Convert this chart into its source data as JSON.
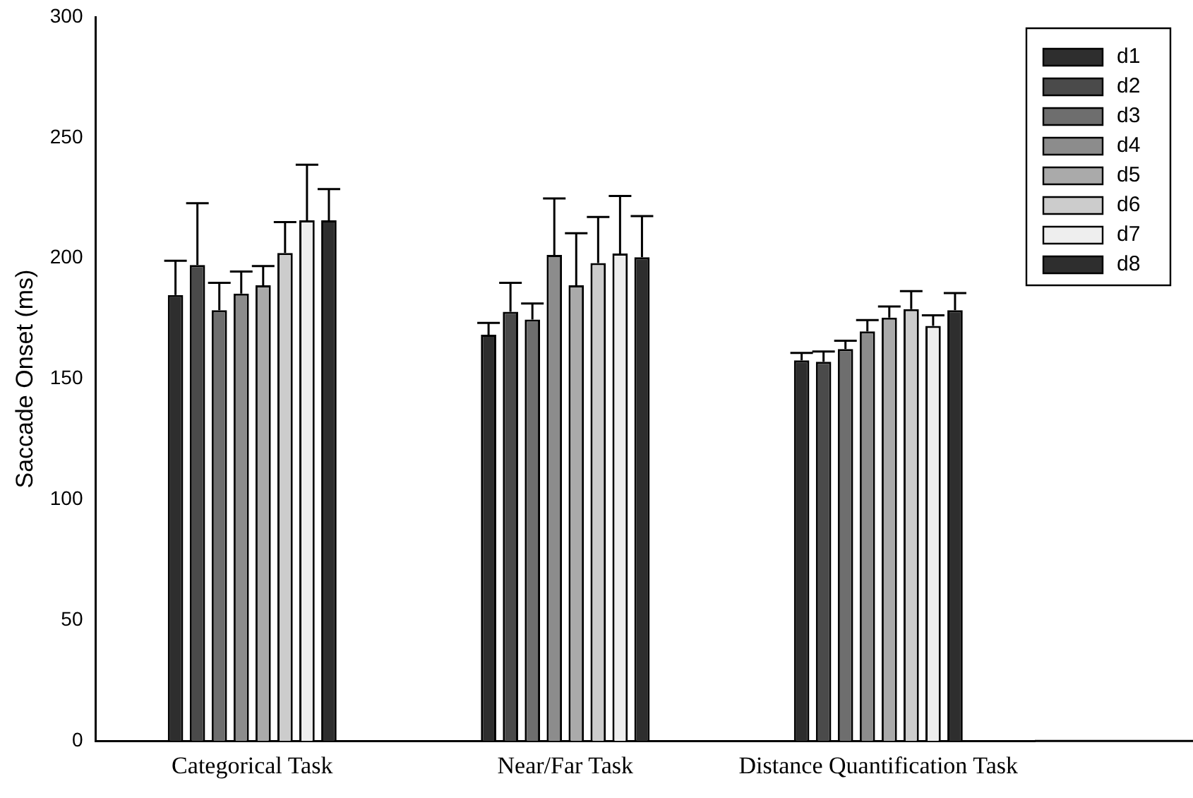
{
  "chart_data": {
    "type": "bar",
    "ylabel": "Saccade Onset (ms)",
    "categories": [
      "Categorical Task",
      "Near/Far Task",
      "Distance Quantification Task"
    ],
    "ylim": [
      0,
      300
    ],
    "yticks": [
      0,
      50,
      100,
      150,
      200,
      250,
      300
    ],
    "grid": false,
    "legend": "top right",
    "series": [
      {
        "name": "d1",
        "color": "#2e2e2e",
        "values": [
          184.8,
          168.3,
          157.7
        ],
        "errors": [
          [
            184.8,
            199
          ],
          [
            168.3,
            173.2
          ],
          [
            157.7,
            160.8
          ]
        ]
      },
      {
        "name": "d2",
        "color": "#4a4a4a",
        "values": [
          197.2,
          177.8,
          157.1
        ],
        "errors": [
          [
            197.2,
            222.8
          ],
          [
            177.8,
            189.8
          ],
          [
            157.1,
            161.4
          ]
        ]
      },
      {
        "name": "d3",
        "color": "#6e6e6e",
        "values": [
          178.5,
          174.6,
          162.4
        ],
        "errors": [
          [
            178.5,
            189.8
          ],
          [
            174.6,
            181.3
          ],
          [
            162.4,
            165.8
          ]
        ]
      },
      {
        "name": "d4",
        "color": "#8c8c8c",
        "values": [
          185.4,
          201.4,
          169.7
        ],
        "errors": [
          [
            185.4,
            194.5
          ],
          [
            201.4,
            224.8
          ],
          [
            169.7,
            174.4
          ]
        ]
      },
      {
        "name": "d5",
        "color": "#aaaaaa",
        "values": [
          188.8,
          188.8,
          175.4
        ],
        "errors": [
          [
            188.8,
            196.8
          ],
          [
            188.8,
            210.4
          ],
          [
            175.4,
            180
          ]
        ]
      },
      {
        "name": "d6",
        "color": "#cccccc",
        "values": [
          202.2,
          198,
          178.9
        ],
        "errors": [
          [
            202.2,
            215
          ],
          [
            198,
            217.1
          ],
          [
            178.9,
            186.4
          ]
        ]
      },
      {
        "name": "d7",
        "color": "#eeeeee",
        "values": [
          215.7,
          202,
          172
        ],
        "errors": [
          [
            215.7,
            238.8
          ],
          [
            202,
            225.8
          ],
          [
            172,
            176.4
          ]
        ]
      },
      {
        "name": "d8",
        "color": "#2e2e2e",
        "values": [
          215.7,
          200.4,
          178.5
        ],
        "errors": [
          [
            215.7,
            228.7
          ],
          [
            200.4,
            217.5
          ],
          [
            178.5,
            185.6
          ]
        ]
      }
    ]
  }
}
